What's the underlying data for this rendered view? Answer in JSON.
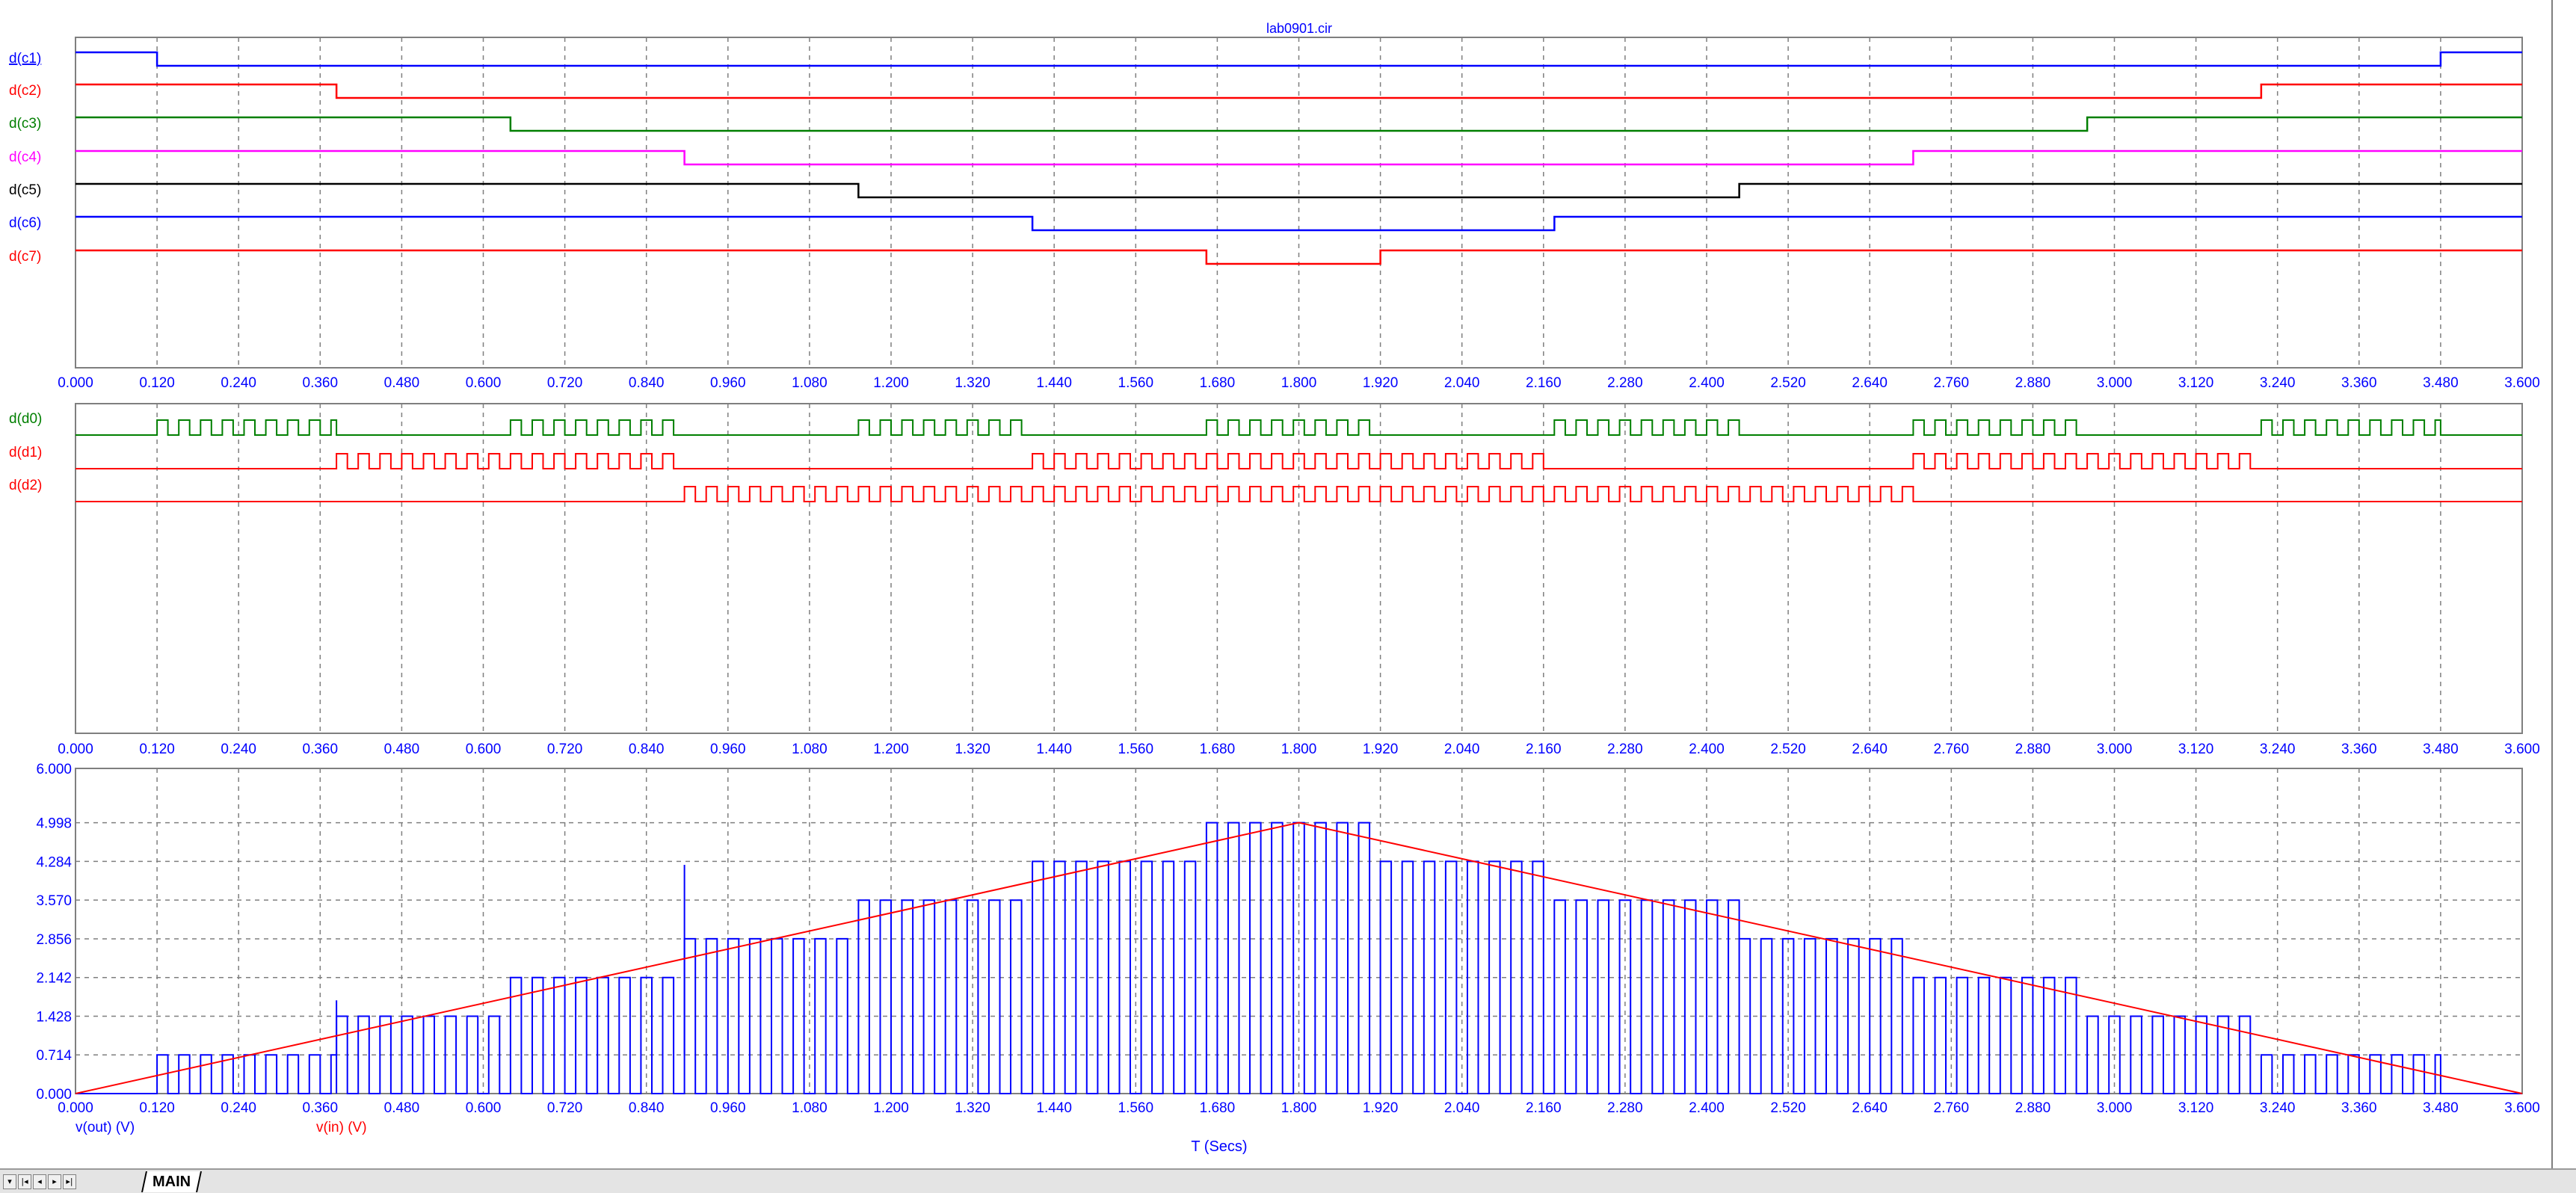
{
  "window_title": "lab0901.cir",
  "x_axis": {
    "label": "T (Secs)",
    "ticks": [
      "0.000",
      "0.120",
      "0.240",
      "0.360",
      "0.480",
      "0.600",
      "0.720",
      "0.840",
      "0.960",
      "1.080",
      "1.200",
      "1.320",
      "1.440",
      "1.560",
      "1.680",
      "1.800",
      "1.920",
      "2.040",
      "2.160",
      "2.280",
      "2.400",
      "2.520",
      "2.640",
      "2.760",
      "2.880",
      "3.000",
      "3.120",
      "3.240",
      "3.360",
      "3.480",
      "3.600"
    ],
    "range": [
      0,
      3.6
    ]
  },
  "colors": {
    "blue": "#0000ff",
    "red": "#ff0000",
    "green": "#007f00",
    "magenta": "#ff00ff",
    "black": "#000000",
    "grid": "#7f7f7f",
    "frame": "#7f7f7f"
  },
  "tabs": {
    "active": "MAIN"
  },
  "nav_icons": [
    "scroll-first-icon",
    "scroll-prev-icon",
    "scroll-next-icon",
    "scroll-last-icon"
  ],
  "chart_data": [
    {
      "type": "line",
      "title": "lab0901.cir",
      "subtype": "digital",
      "xlim": [
        0,
        3.6
      ],
      "grid": true,
      "series": [
        {
          "name": "d(c1)",
          "color": "blue",
          "edges": [
            0.12,
            3.48
          ],
          "initial": 1
        },
        {
          "name": "d(c2)",
          "color": "red",
          "edges": [
            0.384,
            3.216
          ],
          "initial": 1
        },
        {
          "name": "d(c3)",
          "color": "green",
          "edges": [
            0.64,
            2.96
          ],
          "initial": 1
        },
        {
          "name": "d(c4)",
          "color": "magenta",
          "edges": [
            0.896,
            2.704
          ],
          "initial": 1
        },
        {
          "name": "d(c5)",
          "color": "black",
          "edges": [
            1.152,
            2.448
          ],
          "initial": 1
        },
        {
          "name": "d(c6)",
          "color": "blue",
          "edges": [
            1.408,
            2.176
          ],
          "initial": 1
        },
        {
          "name": "d(c7)",
          "color": "red",
          "edges": [
            1.664,
            1.92
          ],
          "initial": 1
        }
      ]
    },
    {
      "type": "line",
      "subtype": "digital",
      "xlim": [
        0,
        3.6
      ],
      "grid": true,
      "series": [
        {
          "name": "d(d0)",
          "color": "green",
          "clock_period": 0.032,
          "active_windows": [
            [
              0.12,
              0.384
            ],
            [
              0.64,
              0.896
            ],
            [
              1.152,
              1.408
            ],
            [
              1.664,
              1.92
            ],
            [
              2.176,
              2.448
            ],
            [
              2.704,
              2.96
            ],
            [
              3.216,
              3.48
            ]
          ]
        },
        {
          "name": "d(d1)",
          "color": "red",
          "clock_period": 0.032,
          "active_windows": [
            [
              0.384,
              0.896
            ],
            [
              1.408,
              2.176
            ],
            [
              2.704,
              3.216
            ]
          ]
        },
        {
          "name": "d(d2)",
          "color": "red",
          "clock_period": 0.032,
          "active_windows": [
            [
              0.896,
              2.704
            ]
          ]
        }
      ]
    },
    {
      "type": "line",
      "xlim": [
        0,
        3.6
      ],
      "ylim": [
        0,
        6
      ],
      "grid": true,
      "yticks": [
        "0.000",
        "0.714",
        "1.428",
        "2.142",
        "2.856",
        "3.570",
        "4.284",
        "4.998",
        "6.000"
      ],
      "series": [
        {
          "name": "v(out) (V)",
          "color": "blue",
          "clock_period": 0.032,
          "levels": [
            {
              "t": [
                0.0,
                0.12
              ],
              "v": 0.0
            },
            {
              "t": [
                0.12,
                0.384
              ],
              "v": 0.714
            },
            {
              "t": [
                0.384,
                0.64
              ],
              "v": 1.428
            },
            {
              "t": [
                0.64,
                0.896
              ],
              "v": 2.142
            },
            {
              "t": [
                0.896,
                1.152
              ],
              "v": 2.856
            },
            {
              "t": [
                1.152,
                1.408
              ],
              "v": 3.57
            },
            {
              "t": [
                1.408,
                1.664
              ],
              "v": 4.284
            },
            {
              "t": [
                1.664,
                1.92
              ],
              "v": 4.998
            },
            {
              "t": [
                1.92,
                2.176
              ],
              "v": 4.284
            },
            {
              "t": [
                2.176,
                2.448
              ],
              "v": 3.57
            },
            {
              "t": [
                2.448,
                2.704
              ],
              "v": 2.856
            },
            {
              "t": [
                2.704,
                2.96
              ],
              "v": 2.142
            },
            {
              "t": [
                2.96,
                3.216
              ],
              "v": 1.428
            },
            {
              "t": [
                3.216,
                3.48
              ],
              "v": 0.714
            },
            {
              "t": [
                3.48,
                3.6
              ],
              "v": 0.0
            }
          ],
          "spikes": [
            {
              "t": 0.384,
              "v": 1.72
            },
            {
              "t": 0.896,
              "v": 4.22
            }
          ]
        },
        {
          "name": "v(in) (V)",
          "color": "red",
          "points": [
            [
              0,
              0
            ],
            [
              1.8,
              5.0
            ],
            [
              3.6,
              0
            ]
          ]
        }
      ]
    }
  ]
}
